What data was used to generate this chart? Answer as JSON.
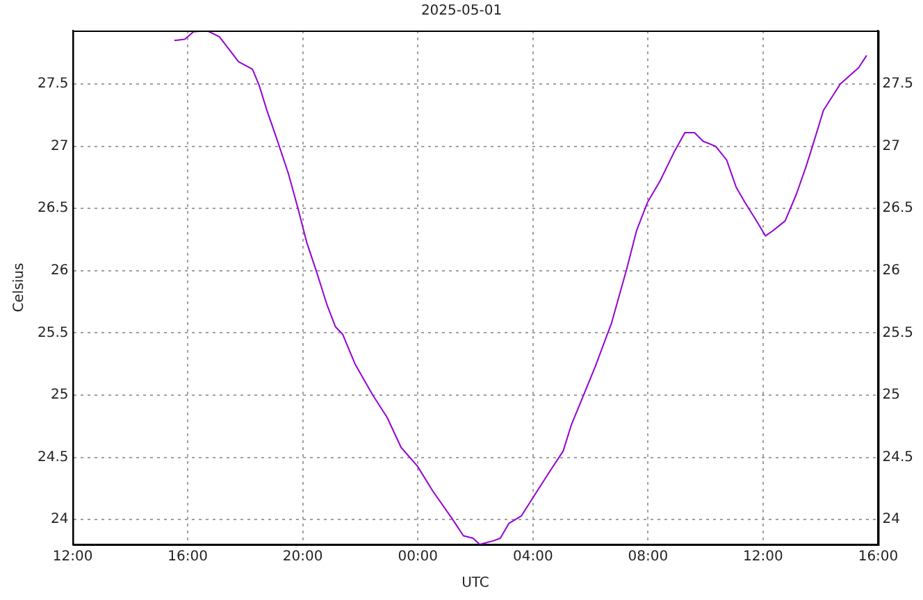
{
  "chart_data": {
    "type": "line",
    "title": "2025-05-01",
    "xlabel": "UTC",
    "ylabel": "Celsius",
    "xlim": [
      "2025-05-01T12:00",
      "2025-05-02T16:00"
    ],
    "ylim": [
      23.8,
      27.93
    ],
    "y2lim": [
      23.8,
      27.93
    ],
    "xticks": [
      {
        "value": "2025-05-01T12:00",
        "label": "12:00"
      },
      {
        "value": "2025-05-01T16:00",
        "label": "16:00"
      },
      {
        "value": "2025-05-01T20:00",
        "label": "20:00"
      },
      {
        "value": "2025-05-02T00:00",
        "label": "00:00"
      },
      {
        "value": "2025-05-02T04:00",
        "label": "04:00"
      },
      {
        "value": "2025-05-02T08:00",
        "label": "08:00"
      },
      {
        "value": "2025-05-02T12:00",
        "label": "12:00"
      },
      {
        "value": "2025-05-02T16:00",
        "label": "16:00"
      }
    ],
    "yticks": [
      24,
      24.5,
      25,
      25.5,
      26,
      26.5,
      27,
      27.5
    ],
    "y2ticks": [
      24,
      24.5,
      25,
      25.5,
      26,
      26.5,
      27,
      27.5
    ],
    "grid": true,
    "legend": false,
    "marker": "none",
    "line_style": "solid",
    "series": [
      {
        "color": "#9400d3",
        "x": [
          "2025-05-01T15:32",
          "2025-05-01T15:54",
          "2025-05-01T16:12",
          "2025-05-01T16:40",
          "2025-05-01T17:06",
          "2025-05-01T17:46",
          "2025-05-01T18:15",
          "2025-05-01T18:29",
          "2025-05-01T18:45",
          "2025-05-01T19:04",
          "2025-05-01T19:30",
          "2025-05-01T19:50",
          "2025-05-01T20:08",
          "2025-05-01T20:28",
          "2025-05-01T20:51",
          "2025-05-01T21:08",
          "2025-05-01T21:23",
          "2025-05-01T21:49",
          "2025-05-01T22:26",
          "2025-05-01T22:56",
          "2025-05-01T23:25",
          "2025-05-01T23:59",
          "2025-05-02T00:31",
          "2025-05-02T01:11",
          "2025-05-02T01:35",
          "2025-05-02T01:55",
          "2025-05-02T02:09",
          "2025-05-02T02:38",
          "2025-05-02T02:52",
          "2025-05-02T03:10",
          "2025-05-02T03:36",
          "2025-05-02T03:59",
          "2025-05-02T04:34",
          "2025-05-02T05:03",
          "2025-05-02T05:20",
          "2025-05-02T05:35",
          "2025-05-02T06:10",
          "2025-05-02T06:44",
          "2025-05-02T07:16",
          "2025-05-02T07:36",
          "2025-05-02T07:59",
          "2025-05-02T08:25",
          "2025-05-02T08:54",
          "2025-05-02T09:17",
          "2025-05-02T09:37",
          "2025-05-02T09:55",
          "2025-05-02T10:21",
          "2025-05-02T10:44",
          "2025-05-02T11:04",
          "2025-05-02T11:22",
          "2025-05-02T11:48",
          "2025-05-02T12:05",
          "2025-05-02T12:20",
          "2025-05-02T12:46",
          "2025-05-02T13:09",
          "2025-05-02T13:29",
          "2025-05-02T13:43",
          "2025-05-02T14:06",
          "2025-05-02T14:41",
          "2025-05-02T15:07",
          "2025-05-02T15:19",
          "2025-05-02T15:36"
        ],
        "values": [
          27.85,
          27.86,
          27.92,
          27.93,
          27.88,
          27.68,
          27.62,
          27.49,
          27.29,
          27.08,
          26.78,
          26.5,
          26.23,
          26.0,
          25.72,
          25.55,
          25.49,
          25.25,
          25.0,
          24.82,
          24.58,
          24.43,
          24.23,
          24.01,
          23.87,
          23.85,
          23.8,
          23.83,
          23.85,
          23.97,
          24.03,
          24.17,
          24.38,
          24.55,
          24.76,
          24.9,
          25.23,
          25.58,
          26.02,
          26.32,
          26.55,
          26.72,
          26.95,
          27.11,
          27.11,
          27.04,
          27.0,
          26.89,
          26.67,
          26.55,
          26.39,
          26.28,
          26.32,
          26.4,
          26.61,
          26.83,
          27.0,
          27.29,
          27.5,
          27.59,
          27.63,
          27.73
        ]
      }
    ]
  }
}
